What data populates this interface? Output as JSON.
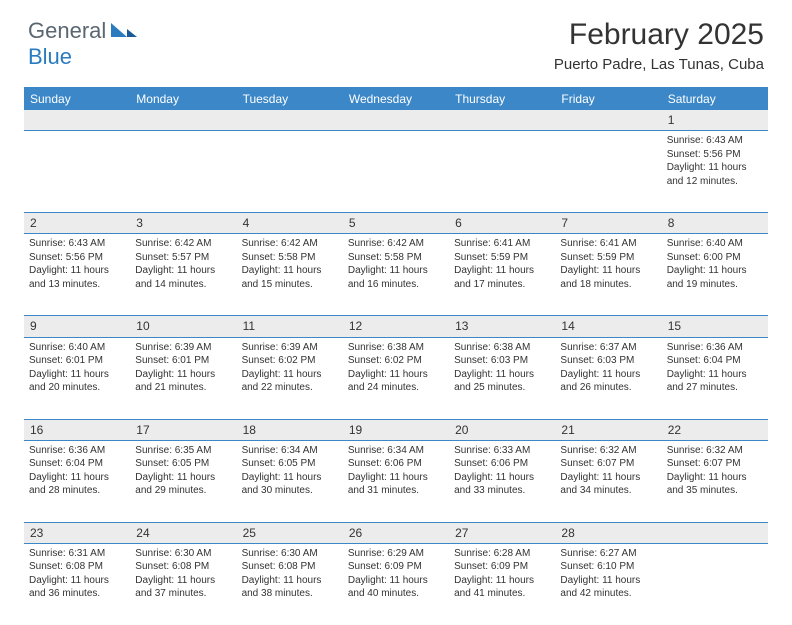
{
  "logo": {
    "general": "General",
    "blue": "Blue"
  },
  "title": "February 2025",
  "location": "Puerto Padre, Las Tunas, Cuba",
  "colors": {
    "header_bg": "#3b87c8",
    "header_text": "#ffffff",
    "daynum_bg": "#ececec",
    "body_text": "#333333",
    "logo_gray": "#5a6770",
    "logo_blue": "#2b7bbf",
    "border": "#3b87c8"
  },
  "weekdays": [
    "Sunday",
    "Monday",
    "Tuesday",
    "Wednesday",
    "Thursday",
    "Friday",
    "Saturday"
  ],
  "weeks": [
    [
      null,
      null,
      null,
      null,
      null,
      null,
      {
        "d": "1",
        "sr": "6:43 AM",
        "ss": "5:56 PM",
        "dh": "11",
        "dm": "12"
      }
    ],
    [
      {
        "d": "2",
        "sr": "6:43 AM",
        "ss": "5:56 PM",
        "dh": "11",
        "dm": "13"
      },
      {
        "d": "3",
        "sr": "6:42 AM",
        "ss": "5:57 PM",
        "dh": "11",
        "dm": "14"
      },
      {
        "d": "4",
        "sr": "6:42 AM",
        "ss": "5:58 PM",
        "dh": "11",
        "dm": "15"
      },
      {
        "d": "5",
        "sr": "6:42 AM",
        "ss": "5:58 PM",
        "dh": "11",
        "dm": "16"
      },
      {
        "d": "6",
        "sr": "6:41 AM",
        "ss": "5:59 PM",
        "dh": "11",
        "dm": "17"
      },
      {
        "d": "7",
        "sr": "6:41 AM",
        "ss": "5:59 PM",
        "dh": "11",
        "dm": "18"
      },
      {
        "d": "8",
        "sr": "6:40 AM",
        "ss": "6:00 PM",
        "dh": "11",
        "dm": "19"
      }
    ],
    [
      {
        "d": "9",
        "sr": "6:40 AM",
        "ss": "6:01 PM",
        "dh": "11",
        "dm": "20"
      },
      {
        "d": "10",
        "sr": "6:39 AM",
        "ss": "6:01 PM",
        "dh": "11",
        "dm": "21"
      },
      {
        "d": "11",
        "sr": "6:39 AM",
        "ss": "6:02 PM",
        "dh": "11",
        "dm": "22"
      },
      {
        "d": "12",
        "sr": "6:38 AM",
        "ss": "6:02 PM",
        "dh": "11",
        "dm": "24"
      },
      {
        "d": "13",
        "sr": "6:38 AM",
        "ss": "6:03 PM",
        "dh": "11",
        "dm": "25"
      },
      {
        "d": "14",
        "sr": "6:37 AM",
        "ss": "6:03 PM",
        "dh": "11",
        "dm": "26"
      },
      {
        "d": "15",
        "sr": "6:36 AM",
        "ss": "6:04 PM",
        "dh": "11",
        "dm": "27"
      }
    ],
    [
      {
        "d": "16",
        "sr": "6:36 AM",
        "ss": "6:04 PM",
        "dh": "11",
        "dm": "28"
      },
      {
        "d": "17",
        "sr": "6:35 AM",
        "ss": "6:05 PM",
        "dh": "11",
        "dm": "29"
      },
      {
        "d": "18",
        "sr": "6:34 AM",
        "ss": "6:05 PM",
        "dh": "11",
        "dm": "30"
      },
      {
        "d": "19",
        "sr": "6:34 AM",
        "ss": "6:06 PM",
        "dh": "11",
        "dm": "31"
      },
      {
        "d": "20",
        "sr": "6:33 AM",
        "ss": "6:06 PM",
        "dh": "11",
        "dm": "33"
      },
      {
        "d": "21",
        "sr": "6:32 AM",
        "ss": "6:07 PM",
        "dh": "11",
        "dm": "34"
      },
      {
        "d": "22",
        "sr": "6:32 AM",
        "ss": "6:07 PM",
        "dh": "11",
        "dm": "35"
      }
    ],
    [
      {
        "d": "23",
        "sr": "6:31 AM",
        "ss": "6:08 PM",
        "dh": "11",
        "dm": "36"
      },
      {
        "d": "24",
        "sr": "6:30 AM",
        "ss": "6:08 PM",
        "dh": "11",
        "dm": "37"
      },
      {
        "d": "25",
        "sr": "6:30 AM",
        "ss": "6:08 PM",
        "dh": "11",
        "dm": "38"
      },
      {
        "d": "26",
        "sr": "6:29 AM",
        "ss": "6:09 PM",
        "dh": "11",
        "dm": "40"
      },
      {
        "d": "27",
        "sr": "6:28 AM",
        "ss": "6:09 PM",
        "dh": "11",
        "dm": "41"
      },
      {
        "d": "28",
        "sr": "6:27 AM",
        "ss": "6:10 PM",
        "dh": "11",
        "dm": "42"
      },
      null
    ]
  ],
  "labels": {
    "sunrise": "Sunrise: ",
    "sunset": "Sunset: ",
    "daylight_a": "Daylight: ",
    "daylight_b": " hours",
    "daylight_c": "and ",
    "daylight_d": " minutes."
  }
}
